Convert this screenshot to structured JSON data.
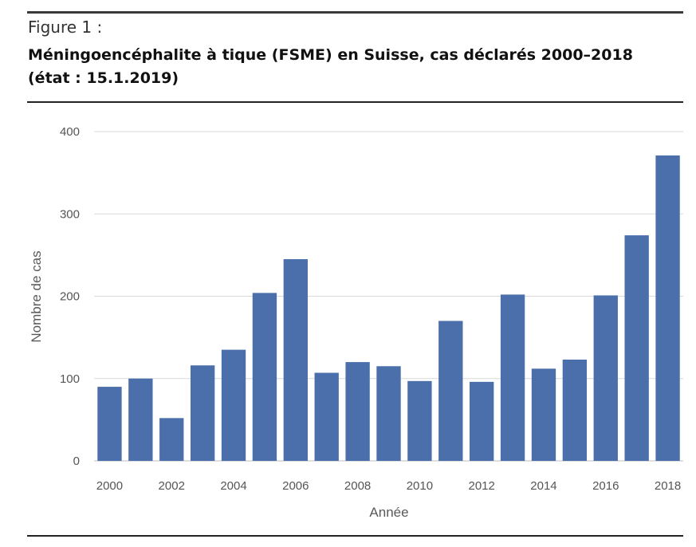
{
  "figure": {
    "label": "Figure 1 :",
    "title_line1": "Méningoencéphalite à tique (FSME) en Suisse, cas déclarés 2000–2018",
    "title_line2": "(état : 15.1.2019)"
  },
  "chart_data": {
    "type": "bar",
    "xlabel": "Année",
    "ylabel": "Nombre de cas",
    "ylim": [
      0,
      400
    ],
    "yticks": [
      0,
      100,
      200,
      300,
      400
    ],
    "xtick_labels": [
      "2000",
      "2002",
      "2004",
      "2006",
      "2008",
      "2010",
      "2012",
      "2014",
      "2016",
      "2018"
    ],
    "categories": [
      "2000",
      "2001",
      "2002",
      "2003",
      "2004",
      "2005",
      "2006",
      "2007",
      "2008",
      "2009",
      "2010",
      "2011",
      "2012",
      "2013",
      "2014",
      "2015",
      "2016",
      "2017",
      "2018"
    ],
    "values": [
      90,
      100,
      52,
      116,
      135,
      204,
      245,
      107,
      120,
      115,
      97,
      170,
      96,
      202,
      112,
      123,
      201,
      274,
      371
    ],
    "bar_color": "#4a6faa",
    "grid": true
  }
}
